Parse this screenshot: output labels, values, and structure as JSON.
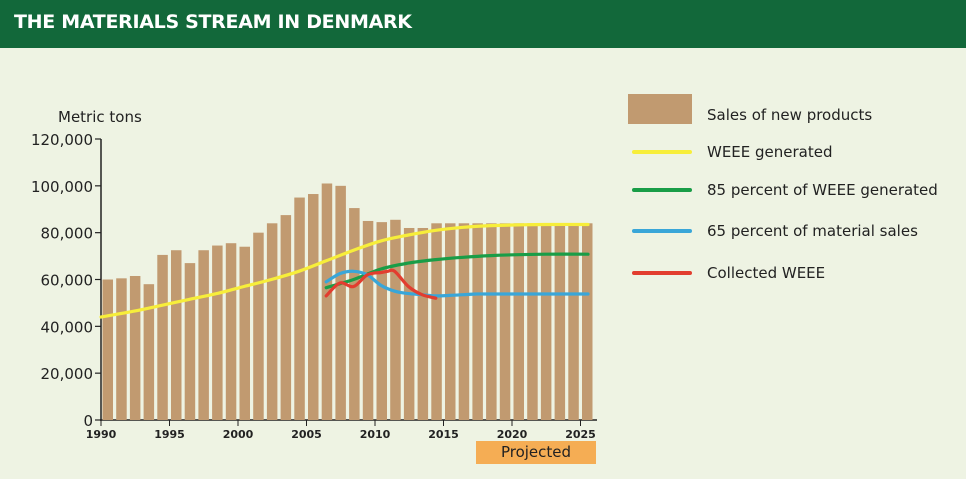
{
  "header": {
    "title": "THE MATERIALS STREAM IN DENMARK"
  },
  "colors": {
    "header_bg": "#12683a",
    "background": "#eef3e3",
    "bars": "#c19a70",
    "weee_generated": "#f7ee3a",
    "pct85": "#199d47",
    "pct65": "#39a6d8",
    "collected": "#e23d2f",
    "projected_bg": "#f5ad54"
  },
  "chart_data": {
    "type": "bar",
    "title": "THE MATERIALS STREAM IN DENMARK",
    "ylabel": "Metric tons",
    "xlabel": "",
    "ylim": [
      0,
      120000
    ],
    "y_ticks": [
      "0",
      "20,000",
      "40,000",
      "60,000",
      "80,000",
      "100,000",
      "120,000"
    ],
    "x_ticks": [
      "1990",
      "1995",
      "2000",
      "2005",
      "2010",
      "2015",
      "2020",
      "2025"
    ],
    "projected_label": "Projected",
    "projected_range": [
      2018,
      2025
    ],
    "categories": [
      1990,
      1991,
      1992,
      1993,
      1994,
      1995,
      1996,
      1997,
      1998,
      1999,
      2000,
      2001,
      2002,
      2003,
      2004,
      2005,
      2006,
      2007,
      2008,
      2009,
      2010,
      2011,
      2012,
      2013,
      2014,
      2015,
      2016,
      2017,
      2018,
      2019,
      2020,
      2021,
      2022,
      2023,
      2024,
      2025
    ],
    "series": [
      {
        "name": "Sales of new products",
        "kind": "bar",
        "color": "#c19a70",
        "x": [
          1990,
          1991,
          1992,
          1993,
          1994,
          1995,
          1996,
          1997,
          1998,
          1999,
          2000,
          2001,
          2002,
          2003,
          2004,
          2005,
          2006,
          2007,
          2008,
          2009,
          2010,
          2011,
          2012,
          2013,
          2014,
          2015,
          2016,
          2017,
          2018,
          2019,
          2020,
          2021,
          2022,
          2023,
          2024,
          2025
        ],
        "values": [
          60000,
          60500,
          61500,
          58000,
          70500,
          72500,
          67000,
          72500,
          74500,
          75500,
          74000,
          80000,
          84000,
          87500,
          95000,
          96500,
          101000,
          100000,
          90500,
          85000,
          84500,
          85500,
          82000,
          82000,
          84000,
          84000,
          84000,
          84000,
          84000,
          84000,
          84000,
          84000,
          84000,
          84000,
          84000,
          84000
        ]
      },
      {
        "name": "WEEE generated",
        "kind": "line",
        "color": "#f7ee3a",
        "x": [
          1990,
          1992,
          1994,
          1996,
          1998,
          2000,
          2002,
          2004,
          2006,
          2008,
          2010,
          2012,
          2014,
          2016,
          2018,
          2020,
          2022,
          2025
        ],
        "values": [
          44000,
          46500,
          49000,
          51500,
          54000,
          57000,
          60000,
          63500,
          68000,
          72500,
          76500,
          79000,
          81000,
          82300,
          83000,
          83300,
          83500,
          83500
        ]
      },
      {
        "name": "85 percent of WEEE generated",
        "kind": "line",
        "color": "#199d47",
        "x": [
          2006,
          2008,
          2010,
          2012,
          2014,
          2016,
          2018,
          2020,
          2022,
          2025
        ],
        "values": [
          56500,
          60000,
          64500,
          67000,
          68500,
          69500,
          70200,
          70600,
          70800,
          70800
        ]
      },
      {
        "name": "65 percent of material sales",
        "kind": "line",
        "color": "#39a6d8",
        "x": [
          2006,
          2007,
          2008,
          2009,
          2010,
          2011,
          2012,
          2013,
          2014,
          2015,
          2016,
          2017,
          2018,
          2020,
          2022,
          2025
        ],
        "values": [
          59000,
          62500,
          63500,
          62000,
          57500,
          55000,
          54000,
          53500,
          53000,
          53200,
          53500,
          53800,
          53800,
          53800,
          53800,
          53800
        ]
      },
      {
        "name": "Collected WEEE",
        "kind": "line",
        "color": "#e23d2f",
        "x": [
          2006,
          2007,
          2008,
          2009,
          2010,
          2010.5,
          2011,
          2012,
          2013,
          2014
        ],
        "values": [
          53000,
          58500,
          57000,
          62000,
          63000,
          63500,
          63500,
          57000,
          53500,
          52000
        ]
      }
    ],
    "legend_position": "right"
  }
}
